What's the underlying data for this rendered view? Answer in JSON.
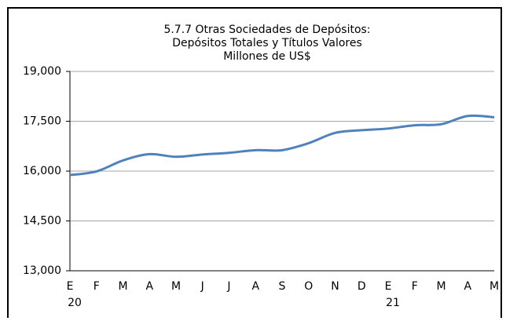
{
  "chart_data": {
    "type": "line",
    "title": [
      "5.7.7 Otras Sociedades de Depósitos:",
      "Depósitos Totales y Títulos Valores",
      "Millones de US$"
    ],
    "categories": [
      "E",
      "F",
      "M",
      "A",
      "M",
      "J",
      "J",
      "A",
      "S",
      "O",
      "N",
      "D",
      "E",
      "F",
      "M",
      "A",
      "M"
    ],
    "year_labels": [
      "20",
      null,
      null,
      null,
      null,
      null,
      null,
      null,
      null,
      null,
      null,
      null,
      "21",
      null,
      null,
      null,
      null
    ],
    "series": [
      {
        "name": "Depósitos Totales y Títulos Valores",
        "color": "#4f81bd",
        "values": [
          15880,
          15990,
          16320,
          16510,
          16430,
          16500,
          16550,
          16630,
          16630,
          16840,
          17150,
          17230,
          17280,
          17380,
          17410,
          17660,
          17620
        ]
      }
    ],
    "ylim": [
      13000,
      19000
    ],
    "yticks": [
      {
        "value": 13000,
        "label": "13,000"
      },
      {
        "value": 14500,
        "label": "14,500"
      },
      {
        "value": 16000,
        "label": "16,000"
      },
      {
        "value": 17500,
        "label": "17,500"
      },
      {
        "value": 19000,
        "label": "19,000"
      }
    ],
    "grid": true
  }
}
